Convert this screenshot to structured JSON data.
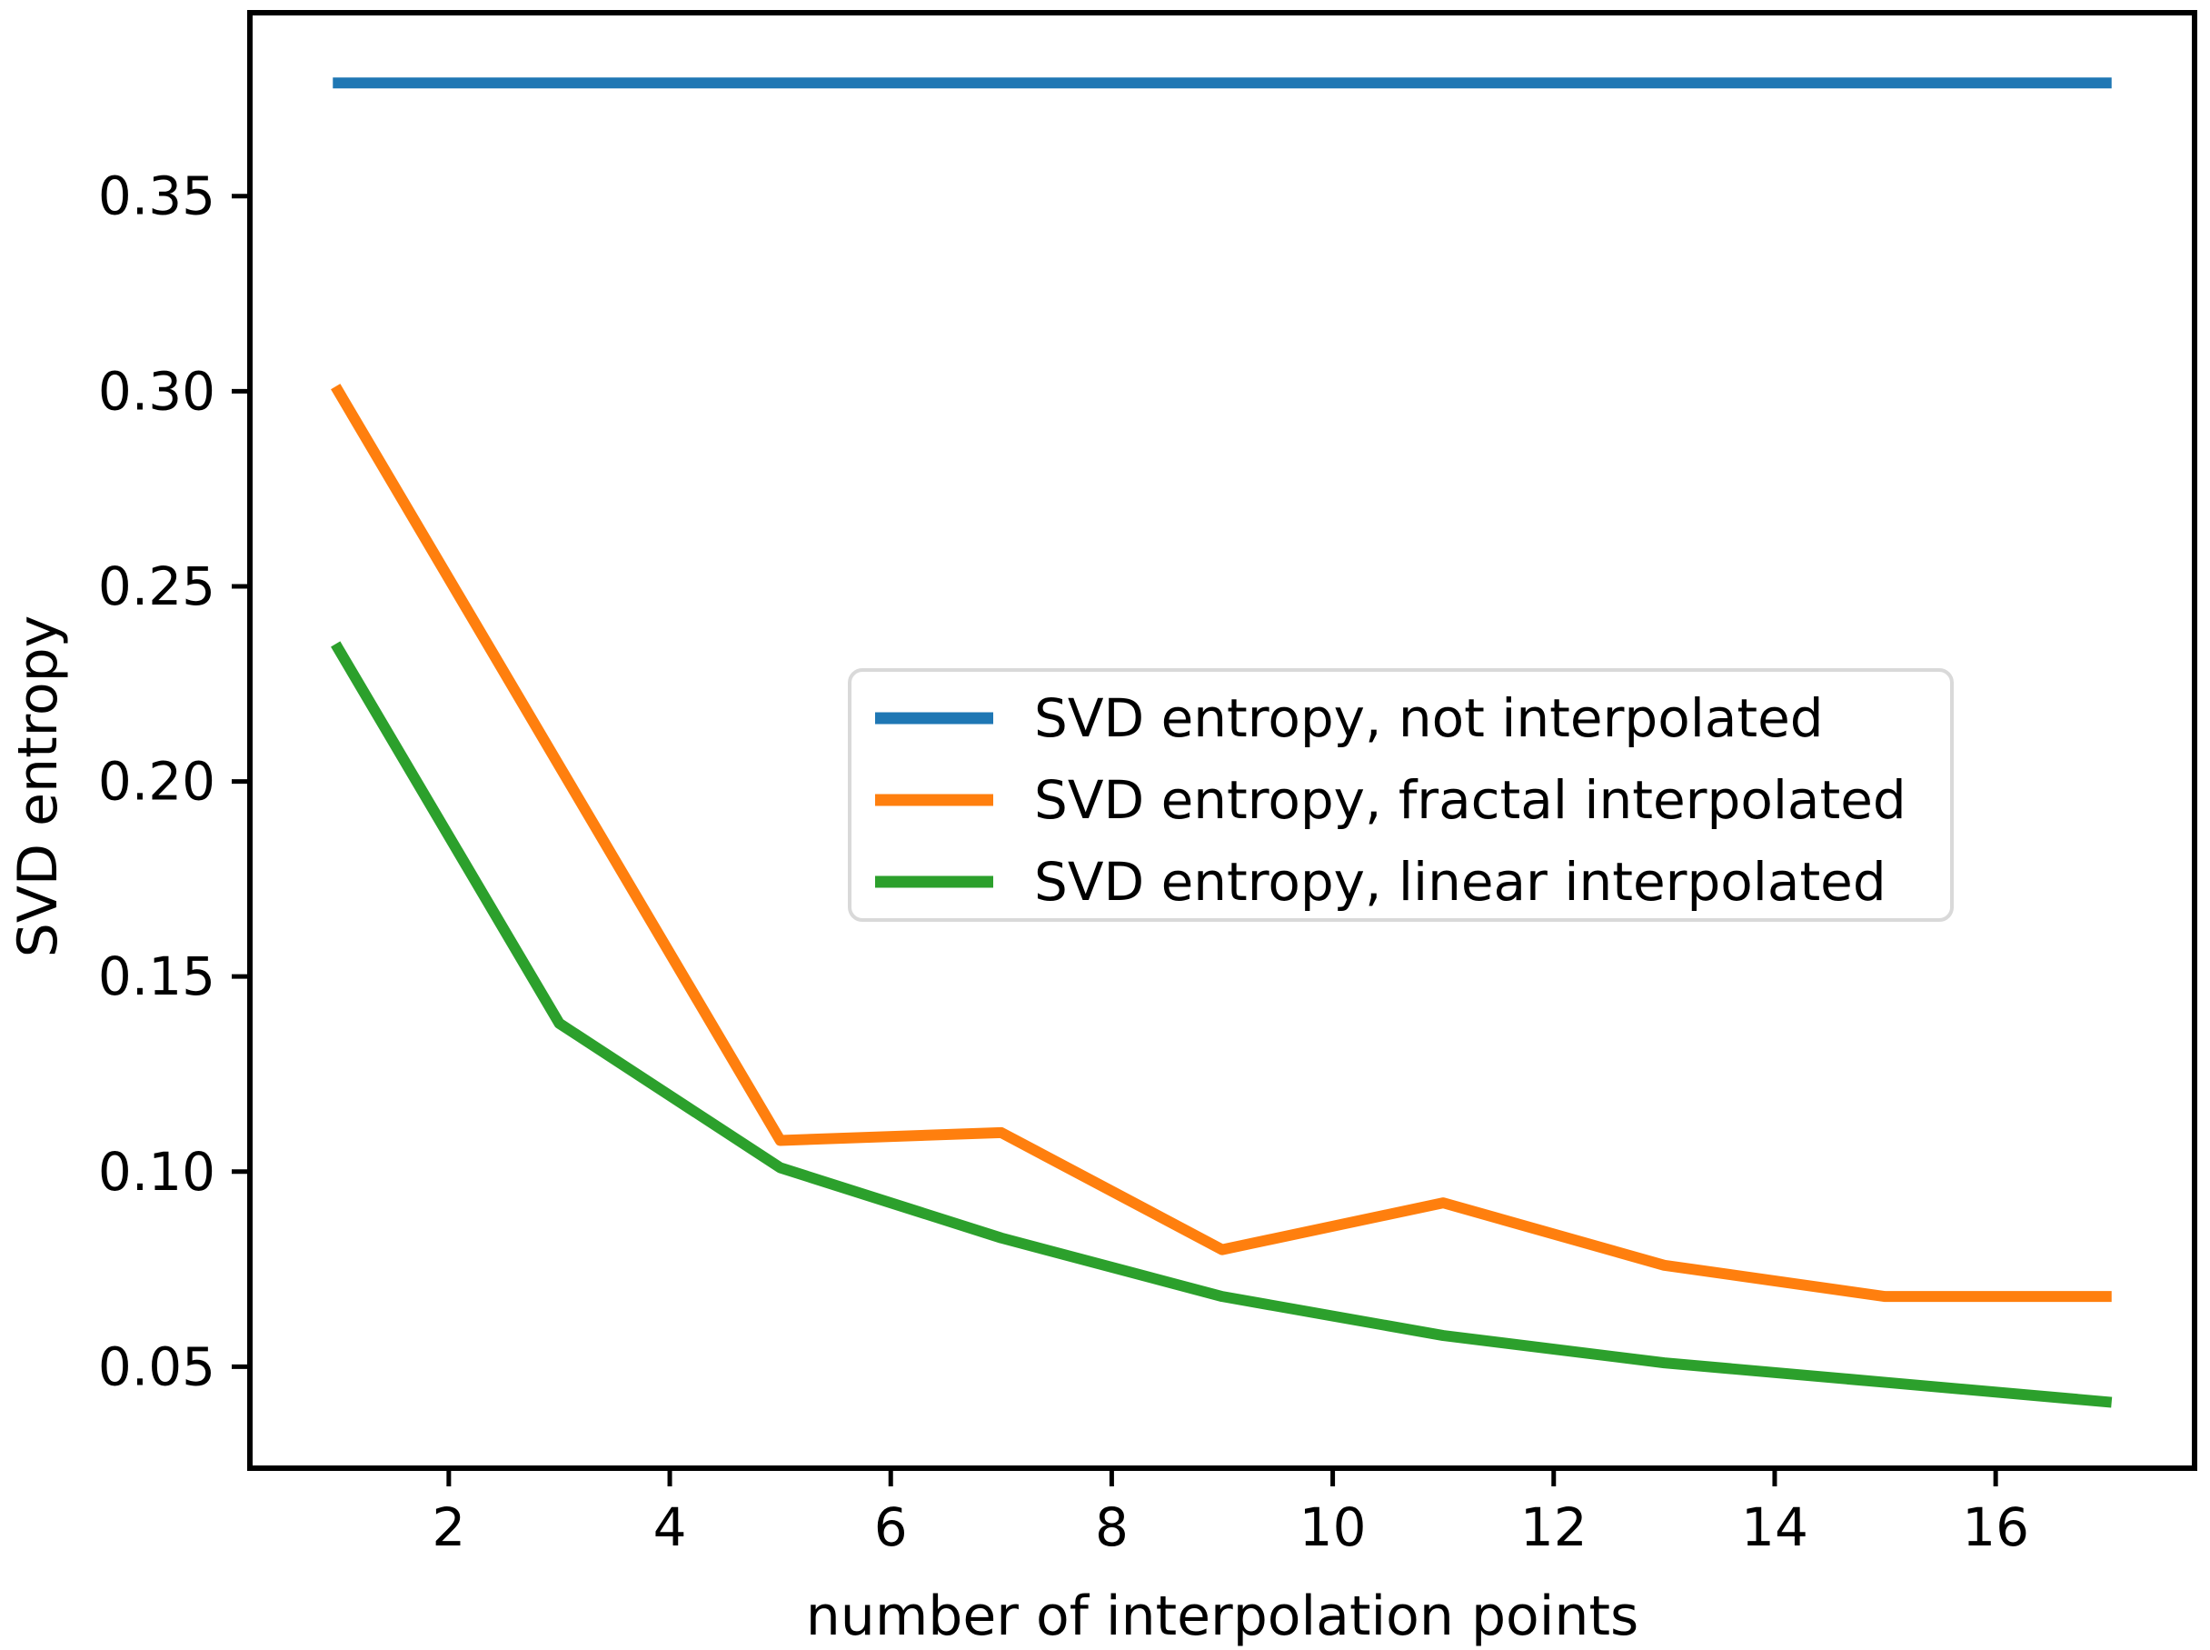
{
  "chart_data": {
    "type": "line",
    "title": "",
    "xlabel": "number of interpolation points",
    "ylabel": "SVD entropy",
    "xlim": [
      0.2,
      17.8
    ],
    "ylim": [
      0.024,
      0.397
    ],
    "grid": false,
    "legend_position": "inside center-right",
    "x": [
      1,
      3,
      5,
      7,
      9,
      11,
      13,
      15,
      17
    ],
    "series": [
      {
        "name": "SVD entropy, not interpolated",
        "color": "#1f77b4",
        "values": [
          0.379,
          0.379,
          0.379,
          0.379,
          0.379,
          0.379,
          0.379,
          0.379,
          0.379
        ]
      },
      {
        "name": "SVD entropy, fractal interpolated",
        "color": "#ff7f0e",
        "values": [
          0.3,
          0.204,
          0.108,
          0.11,
          0.08,
          0.092,
          0.076,
          0.068,
          0.068
        ]
      },
      {
        "name": "SVD entropy, linear interpolated",
        "color": "#2ca02c",
        "values": [
          0.234,
          0.138,
          0.101,
          0.083,
          0.068,
          0.058,
          0.051,
          0.046,
          0.041
        ]
      }
    ],
    "x_ticks": {
      "values": [
        2,
        4,
        6,
        8,
        10,
        12,
        14,
        16
      ],
      "labels": [
        "2",
        "4",
        "6",
        "8",
        "10",
        "12",
        "14",
        "16"
      ]
    },
    "y_ticks": {
      "values": [
        0.05,
        0.1,
        0.15,
        0.2,
        0.25,
        0.3,
        0.35
      ],
      "labels": [
        "0.05",
        "0.10",
        "0.15",
        "0.20",
        "0.25",
        "0.30",
        "0.35"
      ]
    },
    "axis_color": "#000000"
  }
}
